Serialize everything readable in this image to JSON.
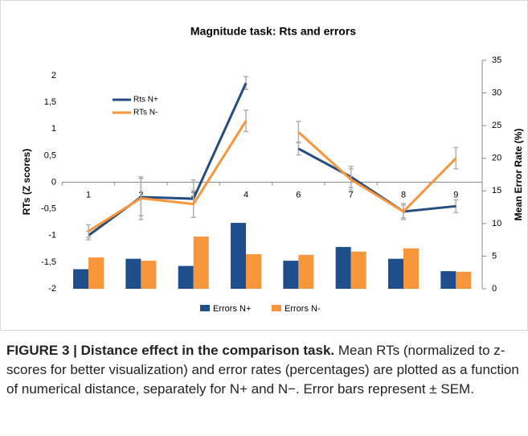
{
  "chart_data": {
    "type": "combo",
    "title": "Magnitude task: Rts and errors",
    "ylabel": "RTs (Z scores)",
    "y2label": "Mean Error Rate (%)",
    "categories": [
      "1",
      "2",
      "3",
      "4",
      "6",
      "7",
      "8",
      "9"
    ],
    "series": [
      {
        "name": "Rts N+",
        "type": "line",
        "color": "#254d7f",
        "values": [
          -1.0,
          -0.28,
          -0.31,
          1.86,
          0.63,
          0.1,
          -0.55,
          -0.45
        ],
        "errors": [
          0.08,
          0.35,
          0.35,
          0.12,
          0.12,
          0.2,
          0.12,
          0.12
        ]
      },
      {
        "name": "RTs N-",
        "type": "line",
        "color": "#f7963a",
        "values": [
          -0.92,
          -0.3,
          -0.41,
          1.15,
          0.94,
          0.05,
          -0.55,
          0.45
        ],
        "errors": [
          0.12,
          0.4,
          0.25,
          0.2,
          0.2,
          0.2,
          0.15,
          0.2
        ]
      },
      {
        "name": "Errors N+",
        "type": "bar",
        "axis": "y2",
        "color": "#1f4e8c",
        "values": [
          3.0,
          4.6,
          3.5,
          10.1,
          4.3,
          6.4,
          4.6,
          2.7
        ]
      },
      {
        "name": "Errors N-",
        "type": "bar",
        "axis": "y2",
        "color": "#f7963a",
        "values": [
          4.8,
          4.3,
          8.0,
          5.3,
          5.2,
          5.7,
          6.2,
          2.6
        ]
      }
    ],
    "ylim": [
      -2,
      2
    ],
    "yticks": [
      -2,
      {
        "value": -1.5,
        "label": "-1,5"
      },
      -1,
      {
        "value": -0.5,
        "label": "-0,5"
      },
      0,
      {
        "value": 0.5,
        "label": "0,5"
      },
      1,
      {
        "value": 1.5,
        "label": "1,5"
      },
      2
    ],
    "y2lim": [
      0,
      35
    ],
    "y2ticks": [
      0,
      5,
      10,
      15,
      20,
      25,
      30,
      35
    ],
    "error_color": "#b0b0b0"
  },
  "caption": {
    "title": "FIGURE 3 | Distance effect in the comparison task.",
    "text": "Mean RTs (normalized to z-scores for better visualization) and error rates (percentages) are plotted as a function of numerical distance, separately for N+ and N−. Error bars represent ± SEM."
  }
}
